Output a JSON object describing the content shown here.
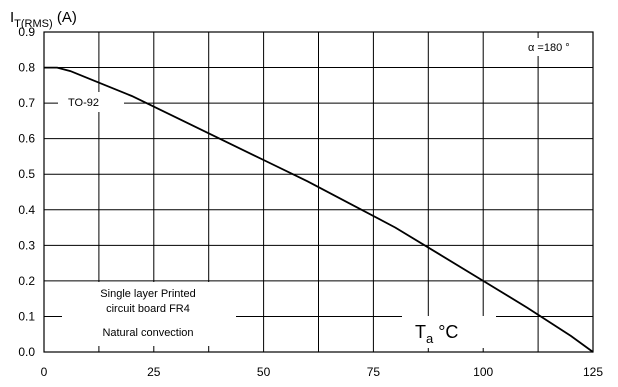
{
  "chart_data": {
    "type": "line",
    "ylabel_main": "I",
    "ylabel_sub": "T(RMS)",
    "ylabel_unit": " (A)",
    "xlabel_main": "T",
    "xlabel_sub": "a",
    "xlabel_unit": " °C",
    "xlim": [
      0,
      125
    ],
    "ylim": [
      0,
      0.9
    ],
    "xticks": [
      "0",
      "25",
      "50",
      "75",
      "100",
      "125"
    ],
    "yticks": [
      "0.0",
      "0.1",
      "0.2",
      "0.3",
      "0.4",
      "0.5",
      "0.6",
      "0.7",
      "0.8",
      "0.9"
    ],
    "x_grid_step": 12.5,
    "y_grid_step": 0.1,
    "grid": true,
    "annotations": {
      "alpha": "α =180 °",
      "package": "TO-92",
      "board_line1": "Single layer Printed",
      "board_line2": "circuit board FR4",
      "convection": "Natural convection"
    },
    "series": [
      {
        "x": [
          0,
          3,
          6,
          10,
          20,
          30,
          40,
          50,
          60,
          70,
          80,
          90,
          100,
          110,
          120,
          125
        ],
        "y": [
          0.8,
          0.8,
          0.79,
          0.77,
          0.72,
          0.66,
          0.6,
          0.54,
          0.48,
          0.415,
          0.35,
          0.275,
          0.2,
          0.125,
          0.045,
          0.0
        ]
      }
    ]
  }
}
